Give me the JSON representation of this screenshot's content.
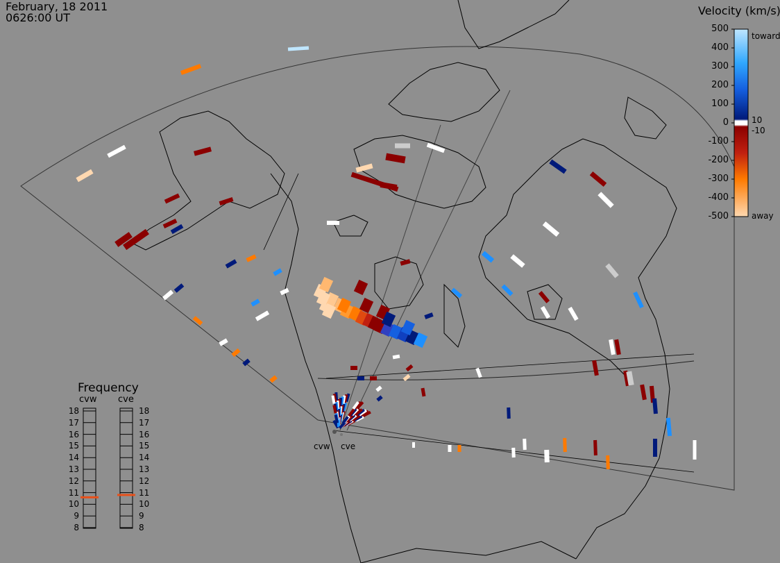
{
  "header": {
    "date": "February, 18 2011",
    "time": "0626:00 UT"
  },
  "colorbar": {
    "title": "Velocity (km/s)",
    "ticks": [
      "500",
      "400",
      "300",
      "200",
      "100",
      "0",
      "-100",
      "-200",
      "-300",
      "-400",
      "-500"
    ],
    "label_toward": "toward",
    "label_away": "away",
    "label_pos": "10",
    "label_neg": "-10",
    "colors": {
      "toward_light": "#bfe6ff",
      "toward_mid": "#1e90ff",
      "toward_dark": "#001a7a",
      "away_dark": "#8b0000",
      "away_mid": "#ff7a00",
      "away_light": "#ffd8b0"
    }
  },
  "frequency": {
    "title": "Frequency",
    "radars": [
      "cvw",
      "cve"
    ],
    "ticks": [
      "18",
      "17",
      "16",
      "15",
      "14",
      "13",
      "12",
      "11",
      "10",
      "9",
      "8"
    ],
    "current_mhz": {
      "cvw": 10.6,
      "cve": 10.8
    },
    "marker_color": "#e8501a"
  },
  "radar_labels": [
    "cvw",
    "cve"
  ],
  "map": {
    "background_color": "#8f8f8f",
    "line_color": "#000000"
  }
}
